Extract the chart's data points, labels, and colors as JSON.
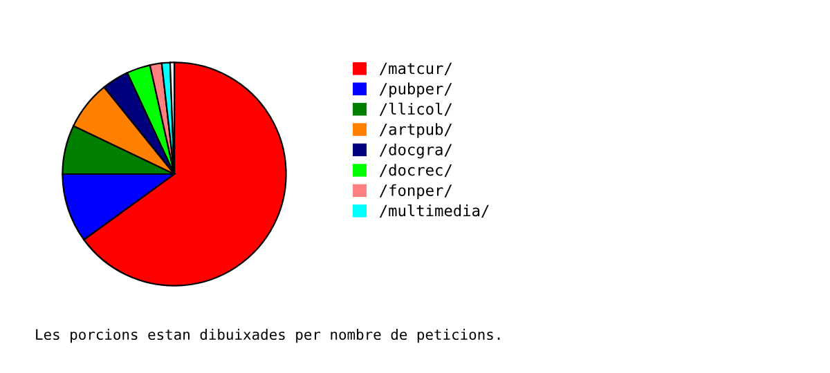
{
  "chart_data": {
    "type": "pie",
    "categories": [
      "/matcur/",
      "/pubper/",
      "/llicol/",
      "/artpub/",
      "/docgra/",
      "/docrec/",
      "/fonper/",
      "/multimedia/",
      null
    ],
    "values": [
      65.0,
      10.0,
      7.1,
      7.1,
      3.9,
      3.4,
      1.7,
      1.2,
      0.6
    ],
    "colors": [
      "#ff0000",
      "#0000ff",
      "#007f00",
      "#ff7f00",
      "#00007f",
      "#00ff00",
      "#ff8080",
      "#00ffff",
      "#ffffff"
    ],
    "legend": "right",
    "annotations": [
      "Les porcions estan dibuixades per nombre de peticions."
    ]
  }
}
